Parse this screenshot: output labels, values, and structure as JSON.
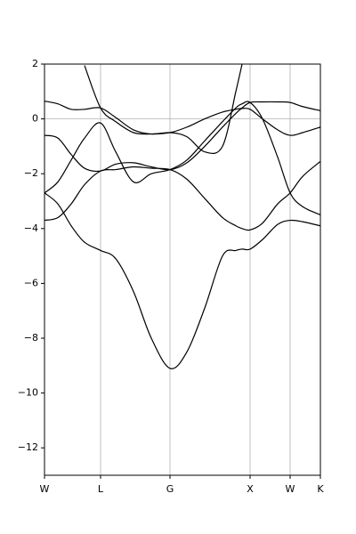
{
  "chart_data": {
    "type": "line",
    "x": [
      0,
      15,
      30,
      45,
      63,
      80,
      100,
      120,
      141,
      160,
      180,
      200,
      215,
      222,
      231,
      245,
      262,
      276,
      290,
      310
    ],
    "series": [
      {
        "color": "#000000",
        "values": [
          -2.7,
          -3.1,
          -3.9,
          -4.5,
          -4.8,
          -5.1,
          -6.3,
          -8.0,
          -9.1,
          -8.5,
          -6.9,
          -5.0,
          -4.8,
          -4.75,
          -4.75,
          -4.4,
          -3.85,
          -3.7,
          -3.75,
          -3.9
        ]
      },
      {
        "color": "#000000",
        "values": [
          -3.7,
          -3.6,
          -3.1,
          -2.4,
          -1.9,
          -1.85,
          -1.75,
          -1.8,
          -1.85,
          -2.2,
          -2.9,
          -3.6,
          -3.9,
          -4.0,
          -4.05,
          -3.8,
          -3.1,
          -2.7,
          -2.1,
          -1.55
        ]
      },
      {
        "color": "#000000",
        "values": [
          -2.7,
          -2.3,
          -1.5,
          -0.7,
          -0.15,
          -1.2,
          -2.3,
          -2.0,
          -1.85,
          -1.5,
          -0.8,
          -0.1,
          0.4,
          0.55,
          0.6,
          0.0,
          -1.4,
          -2.7,
          -3.2,
          -3.5
        ]
      },
      {
        "color": "#000000",
        "values": [
          -0.6,
          -0.7,
          -1.3,
          -1.8,
          -1.9,
          -1.65,
          -1.6,
          -1.75,
          -1.85,
          -1.6,
          -1.0,
          -0.3,
          0.2,
          0.4,
          0.6,
          0.62,
          0.62,
          0.6,
          0.45,
          0.3
        ]
      },
      {
        "color": "#000000",
        "values": [
          0.65,
          0.55,
          0.35,
          0.35,
          0.4,
          0.05,
          -0.4,
          -0.55,
          -0.5,
          -0.65,
          -1.2,
          -1.0,
          1.0,
          2.0,
          null,
          null,
          null,
          null,
          null,
          null
        ]
      },
      {
        "color": "#000000",
        "values": [
          null,
          null,
          null,
          1.95,
          0.4,
          -0.1,
          -0.5,
          -0.55,
          -0.5,
          -0.3,
          0.0,
          0.25,
          0.35,
          0.38,
          0.35,
          0.0,
          -0.4,
          -0.6,
          -0.5,
          -0.3
        ]
      }
    ],
    "xlim": [
      0,
      310
    ],
    "xticks": [
      {
        "value": 0,
        "label": "W"
      },
      {
        "value": 63,
        "label": "L"
      },
      {
        "value": 141,
        "label": "G"
      },
      {
        "value": 231,
        "label": "X"
      },
      {
        "value": 276,
        "label": "W"
      },
      {
        "value": 310,
        "label": "K"
      }
    ],
    "ylim": [
      -13,
      2
    ],
    "yticks": [
      2,
      0,
      {
        "value": -2,
        "label": "−2"
      },
      {
        "value": -4,
        "label": "−4"
      },
      {
        "value": -6,
        "label": "−6"
      },
      {
        "value": -8,
        "label": "−8"
      },
      {
        "value": -10,
        "label": "−10"
      },
      {
        "value": -12,
        "label": "−12"
      }
    ],
    "reference_line": 0,
    "xgrid": true
  }
}
